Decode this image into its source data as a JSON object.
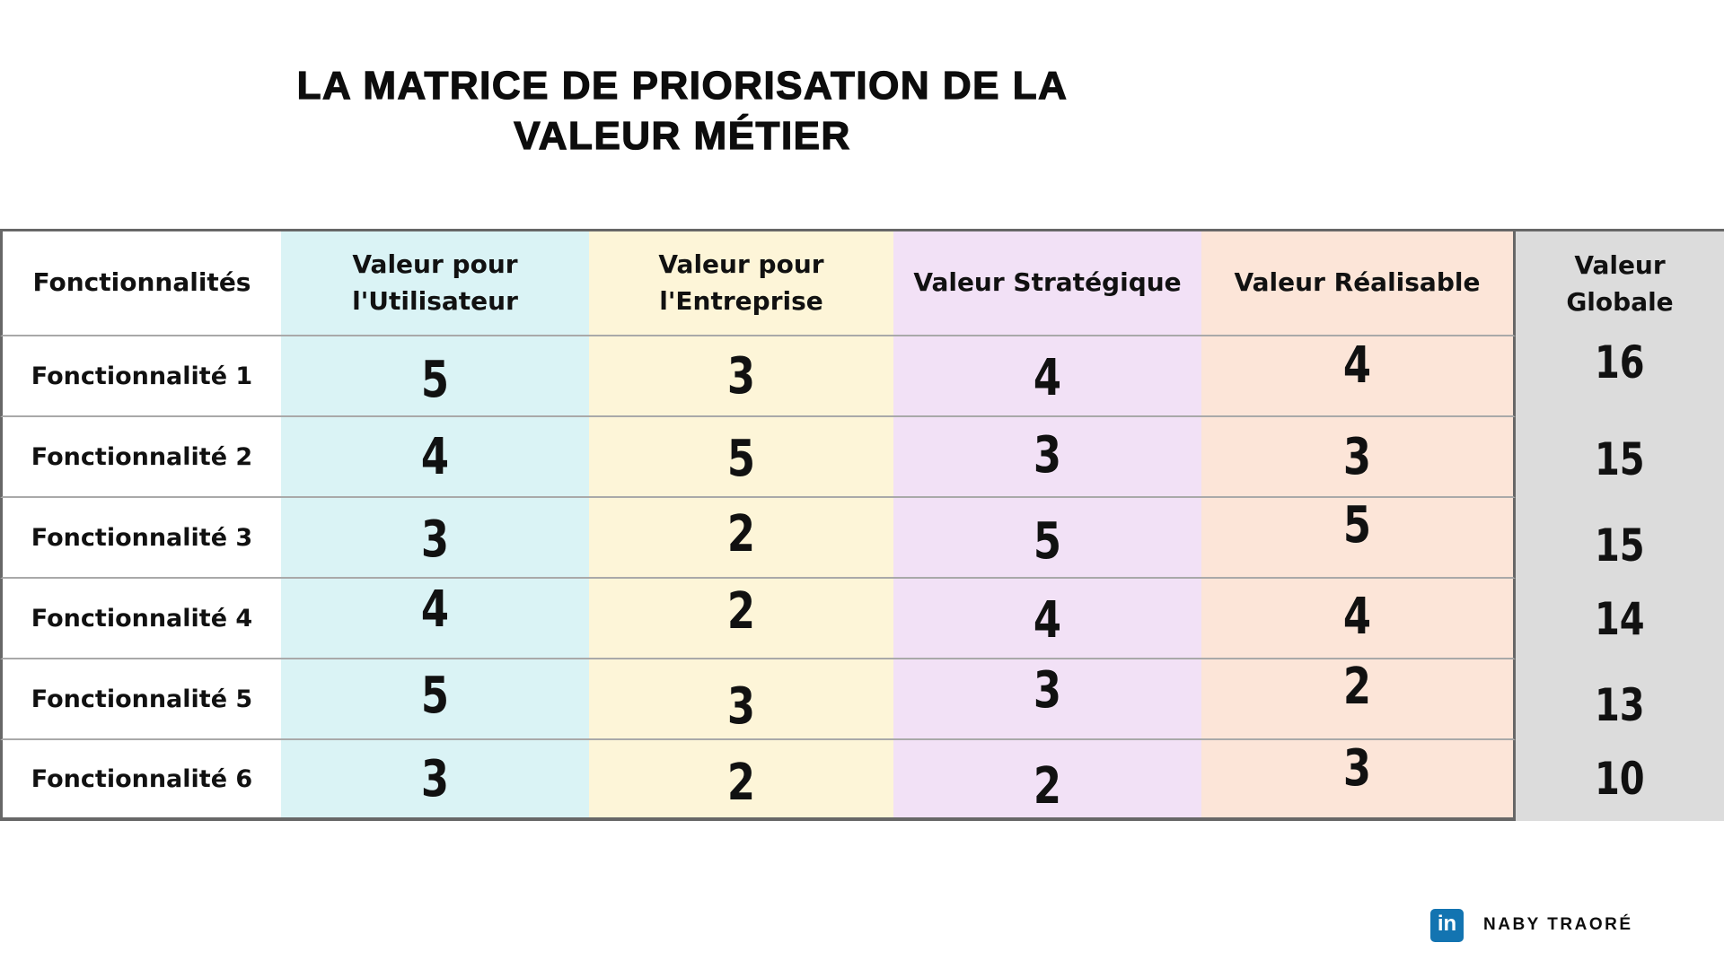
{
  "title": {
    "line1": "LA MATRICE DE PRIORISATION DE LA",
    "line2": "VALEUR MÉTIER"
  },
  "chart_data": {
    "type": "table",
    "title": "LA MATRICE DE PRIORISATION DE LA VALEUR MÉTIER",
    "columns": [
      {
        "id": "fonctionnalites",
        "label": "Fonctionnalités",
        "color": "#ffffff"
      },
      {
        "id": "valeur-utilisateur",
        "label": "Valeur pour l'Utilisateur",
        "color": "#daf3f5"
      },
      {
        "id": "valeur-entreprise",
        "label": "Valeur pour l'Entreprise",
        "color": "#fdf5d8"
      },
      {
        "id": "valeur-strategique",
        "label": "Valeur Stratégique",
        "color": "#f2e1f6"
      },
      {
        "id": "valeur-realisable",
        "label": "Valeur Réalisable",
        "color": "#fce5d8"
      },
      {
        "id": "valeur-globale",
        "label": "Valeur Globale",
        "color": "#dcdcdc"
      }
    ],
    "rows": [
      {
        "label": "Fonctionnalité 1",
        "values": [
          5,
          3,
          4,
          4,
          16
        ]
      },
      {
        "label": "Fonctionnalité 2",
        "values": [
          4,
          5,
          3,
          3,
          15
        ]
      },
      {
        "label": "Fonctionnalité 3",
        "values": [
          3,
          2,
          5,
          5,
          15
        ]
      },
      {
        "label": "Fonctionnalité 4",
        "values": [
          4,
          2,
          4,
          4,
          14
        ]
      },
      {
        "label": "Fonctionnalité 5",
        "values": [
          5,
          3,
          3,
          2,
          13
        ]
      },
      {
        "label": "Fonctionnalité 6",
        "values": [
          3,
          2,
          2,
          3,
          10
        ]
      }
    ]
  },
  "footer": {
    "linkedin_glyph": "in",
    "author": "NABY TRAORÉ"
  },
  "colors": {
    "col_utilisateur": "#daf3f5",
    "col_entreprise": "#fdf5d8",
    "col_strategique": "#f2e1f6",
    "col_realisable": "#fce5d8",
    "col_globale": "#dcdcdc",
    "border_dark": "#676767",
    "row_separator": "#a9a9a9",
    "linkedin_blue": "#1374b1",
    "text": "#0d0d0d"
  }
}
